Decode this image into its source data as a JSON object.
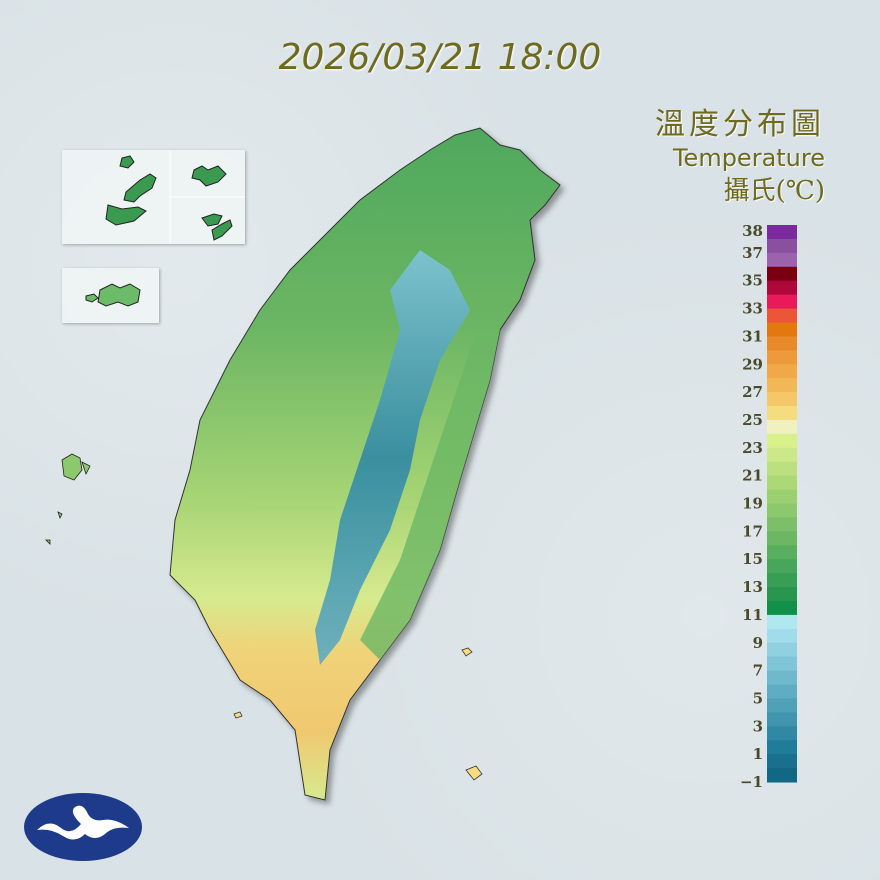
{
  "header": {
    "timestamp": "2026/03/21 18:00"
  },
  "legend": {
    "title_zh": "溫度分布圖",
    "title_en": "Temperature",
    "unit": "攝氏(℃)",
    "ticks": [
      "38",
      "37",
      "35",
      "33",
      "31",
      "29",
      "27",
      "25",
      "23",
      "21",
      "19",
      "17",
      "15",
      "13",
      "11",
      "9",
      "7",
      "5",
      "3",
      "1",
      "−1"
    ],
    "colors_top_to_bottom": [
      "#7b2a9e",
      "#8a50a0",
      "#9b62ae",
      "#7a0010",
      "#b0073a",
      "#e81a5a",
      "#ec5538",
      "#e2780e",
      "#e8892a",
      "#ee9a3a",
      "#f0a848",
      "#f2b858",
      "#f4c868",
      "#f6dc80",
      "#f0f0c0",
      "#daf08a",
      "#cce888",
      "#bce080",
      "#acd878",
      "#9ccf70",
      "#8cc86c",
      "#7cbf68",
      "#6cb664",
      "#5aae60",
      "#48a65a",
      "#389e55",
      "#28964f",
      "#109048",
      "#b0e8f0",
      "#a0dcea",
      "#90d0e0",
      "#80c4d8",
      "#70b8cc",
      "#60acc2",
      "#50a0b8",
      "#4094ae",
      "#3088a4",
      "#207c98",
      "#18708e",
      "#106884"
    ]
  },
  "logo": {
    "icon": "cwa-logo-icon"
  }
}
